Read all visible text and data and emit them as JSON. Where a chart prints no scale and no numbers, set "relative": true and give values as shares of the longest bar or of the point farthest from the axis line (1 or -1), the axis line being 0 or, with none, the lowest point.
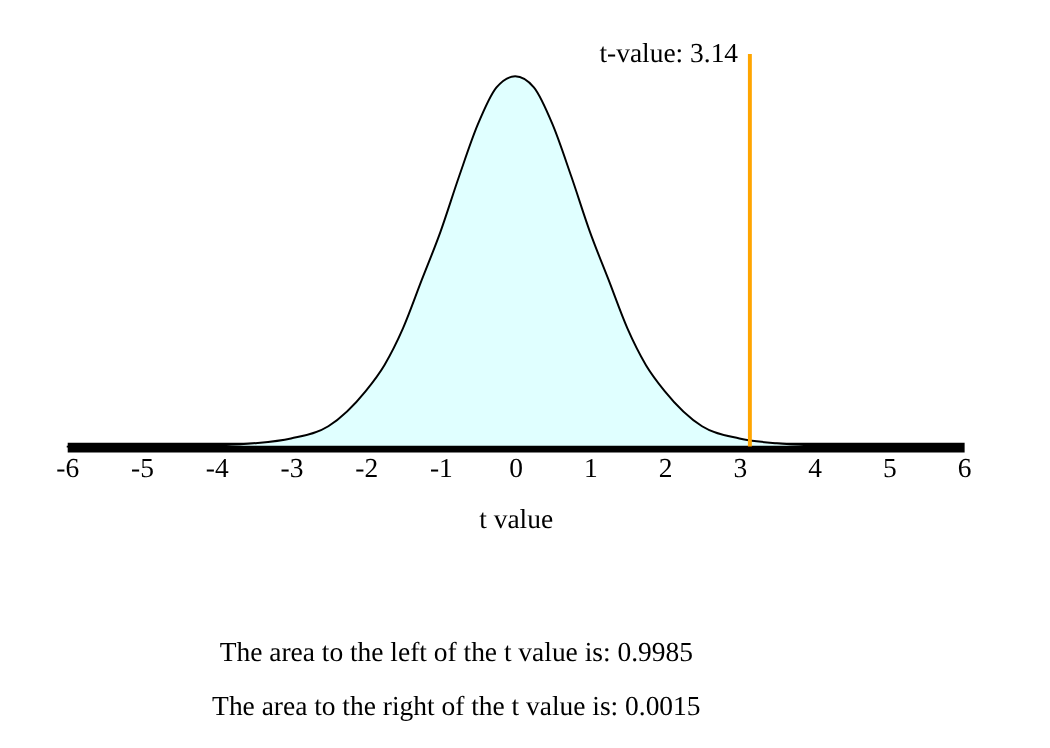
{
  "chart_data": {
    "type": "area",
    "relative": true,
    "xlabel": "t value",
    "x": [
      -6,
      -5,
      -4.5,
      -4,
      -3.5,
      -3,
      -2.5,
      -2,
      -1.75,
      -1.5,
      -1.25,
      -1,
      -0.75,
      -0.5,
      -0.25,
      0,
      0.25,
      0.5,
      0.75,
      1,
      1.25,
      1.5,
      1.75,
      2,
      2.5,
      3,
      3.5,
      4,
      4.5,
      5,
      6
    ],
    "series": [
      {
        "color": "#e0ffff",
        "values": [
          0,
          0.001,
          0.002,
          0.004,
          0.009,
          0.022,
          0.055,
          0.15,
          0.22,
          0.32,
          0.45,
          0.58,
          0.73,
          0.87,
          0.97,
          1,
          0.97,
          0.87,
          0.73,
          0.58,
          0.45,
          0.32,
          0.22,
          0.15,
          0.055,
          0.022,
          0.009,
          0.004,
          0.002,
          0.001,
          0
        ]
      }
    ],
    "xlim": [
      -6,
      6
    ],
    "xticks": [
      -6,
      -5,
      -4,
      -3,
      -2,
      -1,
      0,
      1,
      2,
      3,
      4,
      5,
      6
    ],
    "tick_labels": "x",
    "grid": false,
    "ref_lines": [
      {
        "axis": "x",
        "value": 3.14,
        "label": "t-value: 3.14",
        "color": "#ffa500"
      }
    ],
    "annotations": [
      "The area to the left of the t value is: 0.9985",
      "The area to the right of the t value is: 0.0015"
    ]
  }
}
